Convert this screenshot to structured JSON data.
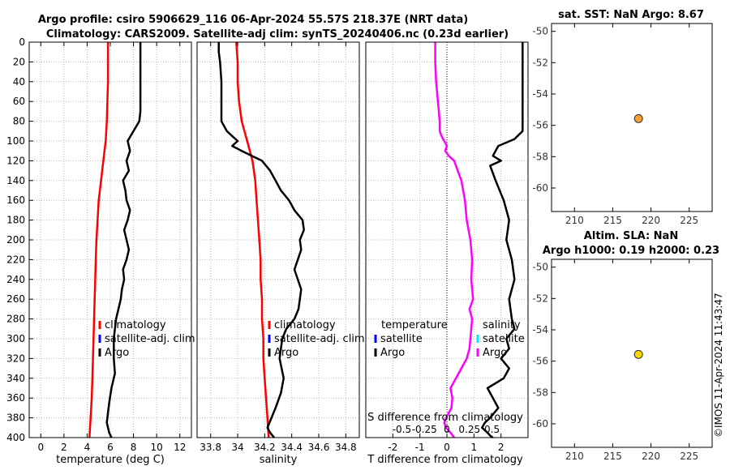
{
  "chart_data": {
    "type": "line",
    "title_line1": "Argo profile: csiro 5906629_116 06-Apr-2024 55.57S 218.37E (NRT data)",
    "title_line2": "Climatology: CARS2009. Satellite-adj clim: synTS_20240406.nc (0.23d earlier)",
    "copyright": "©IMOS 11-Apr-2024 11:43:47",
    "depth_ticks": [
      0,
      20,
      40,
      60,
      80,
      100,
      120,
      140,
      160,
      180,
      200,
      220,
      240,
      260,
      280,
      300,
      320,
      340,
      360,
      380,
      400
    ],
    "depth_ylim": [
      0,
      400
    ],
    "temperature_panel": {
      "xlabel": "temperature (deg C)",
      "xlim": [
        -1,
        13
      ],
      "xticks": [
        0,
        2,
        4,
        6,
        8,
        10,
        12
      ],
      "legend": [
        "climatology",
        "satellite-adj. clim",
        "Argo"
      ],
      "colors": {
        "climatology": "#ff0000",
        "satellite": "#0000ff",
        "argo": "#000000"
      },
      "climatology": {
        "x": [
          5.8,
          5.8,
          5.8,
          5.75,
          5.7,
          5.6,
          5.4,
          5.2,
          5.0,
          4.9,
          4.8,
          4.75,
          4.7,
          4.65,
          4.6,
          4.55,
          4.5,
          4.45,
          4.4,
          4.3,
          4.2
        ],
        "y": [
          0,
          20,
          40,
          60,
          80,
          100,
          120,
          140,
          160,
          180,
          200,
          220,
          240,
          260,
          280,
          300,
          320,
          340,
          360,
          380,
          400
        ]
      },
      "argo": {
        "x": [
          8.6,
          8.6,
          8.6,
          8.6,
          8.6,
          8.5,
          8.0,
          7.5,
          7.7,
          7.4,
          7.6,
          7.1,
          7.3,
          7.4,
          7.7,
          7.5,
          7.2,
          7.4,
          7.6,
          7.4,
          7.1,
          7.2,
          7.0,
          6.9,
          6.7,
          6.5,
          6.3,
          6.3,
          6.4,
          6.1,
          5.9,
          5.8,
          5.7,
          5.9,
          6.1
        ],
        "y": [
          0,
          20,
          40,
          60,
          70,
          80,
          90,
          100,
          110,
          120,
          130,
          140,
          150,
          160,
          170,
          180,
          190,
          200,
          210,
          220,
          230,
          240,
          250,
          260,
          270,
          280,
          300,
          320,
          335,
          350,
          365,
          375,
          385,
          395,
          400
        ]
      }
    },
    "salinity_panel": {
      "xlabel": "salinity",
      "xlim": [
        33.7,
        34.9
      ],
      "xticks": [
        33.8,
        34,
        34.2,
        34.4,
        34.6,
        34.8
      ],
      "xtick_labels": [
        "33.8",
        "34",
        "34.2",
        "34.4",
        "34.6",
        "34.8"
      ],
      "legend": [
        "climatology",
        "satellite-adj. clim",
        "Argo"
      ],
      "climatology": {
        "x": [
          33.99,
          34.0,
          34.0,
          34.01,
          34.03,
          34.07,
          34.11,
          34.13,
          34.14,
          34.15,
          34.16,
          34.17,
          34.17,
          34.18,
          34.18,
          34.19,
          34.19,
          34.2,
          34.21,
          34.22,
          34.23
        ],
        "y": [
          0,
          20,
          40,
          60,
          80,
          100,
          120,
          140,
          160,
          180,
          200,
          220,
          240,
          260,
          280,
          300,
          320,
          340,
          360,
          380,
          400
        ]
      },
      "argo": {
        "x": [
          33.86,
          33.86,
          33.87,
          33.88,
          33.88,
          33.88,
          33.92,
          33.96,
          34.0,
          33.96,
          34.03,
          34.18,
          34.24,
          34.28,
          34.32,
          34.38,
          34.42,
          34.48,
          34.49,
          34.46,
          34.47,
          34.42,
          34.47,
          34.46,
          34.45,
          34.42,
          34.36,
          34.33,
          34.31,
          34.34,
          34.32,
          34.28,
          34.25,
          34.22,
          34.24,
          34.27
        ],
        "y": [
          0,
          10,
          20,
          40,
          60,
          80,
          90,
          95,
          100,
          105,
          110,
          120,
          130,
          140,
          150,
          160,
          170,
          180,
          190,
          200,
          210,
          230,
          250,
          260,
          270,
          280,
          290,
          300,
          320,
          340,
          355,
          370,
          380,
          390,
          395,
          400
        ]
      }
    },
    "difference_panel": {
      "xlabel": "T difference from climatology",
      "xlim": [
        -3,
        3
      ],
      "xticks": [
        -2,
        -1,
        0,
        1,
        2
      ],
      "xtick_labels": [
        "-2",
        "-1",
        "0",
        "1",
        "2"
      ],
      "s_label": "S difference from climatology",
      "s_ticks": [
        -0.5,
        -0.25,
        0,
        0.25,
        0.5
      ],
      "s_tick_labels": [
        "-0.5",
        "-0.25",
        "0",
        "0.25",
        "0.5"
      ],
      "s_xlim": [
        -0.9,
        0.9
      ],
      "legend_left_title": "temperature",
      "legend_left": [
        "satellite",
        "Argo"
      ],
      "legend_right_title": "salinity",
      "legend_right": [
        "satellite",
        "Argo"
      ],
      "colors": {
        "t_satellite": "#0000ff",
        "t_argo": "#000000",
        "s_satellite": "#00e5ff",
        "s_argo": "#ff00ff"
      },
      "t_argo": {
        "x": [
          2.8,
          2.8,
          2.8,
          2.8,
          2.8,
          2.8,
          2.5,
          1.9,
          1.7,
          2.0,
          1.6,
          1.8,
          2.1,
          2.3,
          2.2,
          2.4,
          2.5,
          2.3,
          2.4,
          2.5,
          2.2,
          2.3,
          2.0,
          2.3,
          2.1,
          1.5,
          1.7,
          1.9,
          1.6,
          1.4,
          1.3,
          1.5,
          1.6,
          1.7
        ],
        "y": [
          0,
          20,
          40,
          60,
          80,
          90,
          98,
          105,
          115,
          120,
          125,
          140,
          160,
          180,
          200,
          220,
          240,
          260,
          280,
          290,
          300,
          310,
          320,
          330,
          340,
          350,
          360,
          370,
          380,
          385,
          390,
          395,
          398,
          400
        ]
      },
      "s_argo": {
        "x": [
          -0.13,
          -0.13,
          -0.12,
          -0.1,
          -0.08,
          -0.08,
          -0.06,
          -0.03,
          0.0,
          -0.02,
          0.02,
          0.08,
          0.12,
          0.16,
          0.2,
          0.22,
          0.26,
          0.28,
          0.27,
          0.29,
          0.25,
          0.28,
          0.27,
          0.26,
          0.25,
          0.22,
          0.16,
          0.1,
          0.04,
          0.06,
          0.05,
          -0.01,
          -0.03,
          -0.01,
          0.04,
          0.08
        ],
        "y": [
          0,
          20,
          40,
          60,
          80,
          90,
          95,
          100,
          105,
          110,
          115,
          120,
          130,
          140,
          160,
          180,
          200,
          220,
          240,
          260,
          270,
          280,
          290,
          300,
          310,
          320,
          330,
          340,
          350,
          360,
          370,
          380,
          385,
          390,
          395,
          400
        ]
      }
    },
    "map_sst": {
      "title": "sat. SST: NaN Argo: 8.67",
      "xticks": [
        210,
        215,
        220,
        225
      ],
      "yticks": [
        -50,
        -52,
        -54,
        -56,
        -58,
        -60
      ],
      "xlim": [
        207,
        228
      ],
      "ylim": [
        -61.5,
        -49.5
      ],
      "point": {
        "lon": 218.37,
        "lat": -55.57,
        "color": "#f5a030"
      }
    },
    "map_sla": {
      "title_line1": "Altim. SLA: NaN",
      "title_line2": "Argo h1000: 0.19 h2000: 0.23",
      "xticks": [
        210,
        215,
        220,
        225
      ],
      "yticks": [
        -50,
        -52,
        -54,
        -56,
        -58,
        -60
      ],
      "xlim": [
        207,
        228
      ],
      "ylim": [
        -61.5,
        -49.5
      ],
      "point": {
        "lon": 218.37,
        "lat": -55.57,
        "color": "#f2d800"
      }
    }
  }
}
